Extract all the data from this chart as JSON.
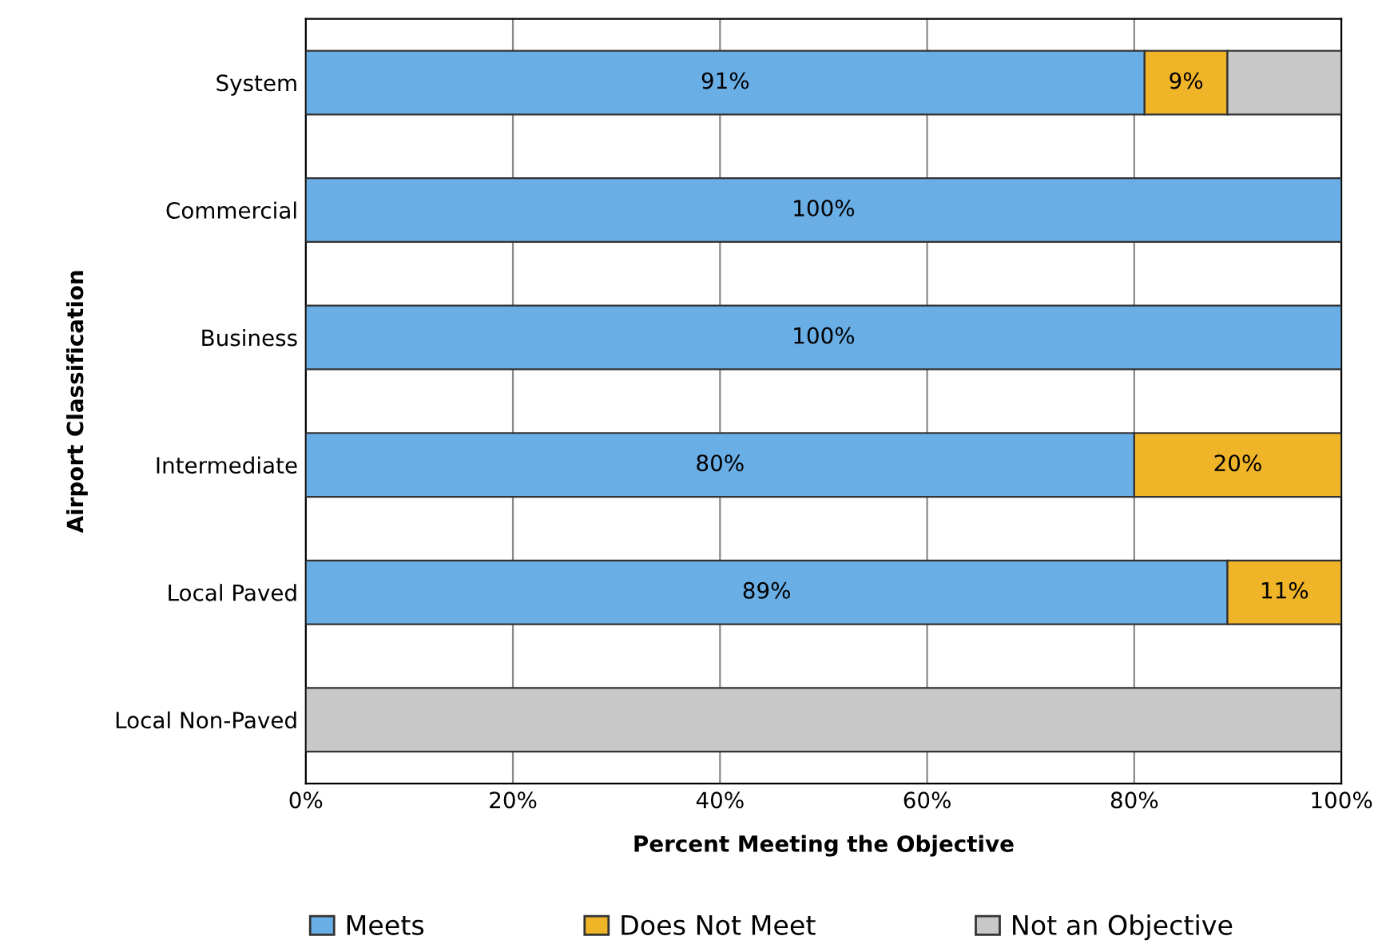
{
  "chart_data": {
    "type": "bar",
    "orientation": "horizontal",
    "stacked": true,
    "categories": [
      "System",
      "Commercial",
      "Business",
      "Intermediate",
      "Local Paved",
      "Local Non-Paved"
    ],
    "series": [
      {
        "name": "Meets",
        "color": "#6aaee6",
        "values": [
          81,
          100,
          100,
          80,
          89,
          null
        ],
        "value_labels": [
          null,
          "100%",
          "100%",
          "80%",
          "89%",
          null
        ]
      },
      {
        "name": "Does Not Meet",
        "color": "#f0b429",
        "values": [
          8,
          null,
          null,
          20,
          11,
          null
        ],
        "value_labels": [
          null,
          null,
          null,
          "20%",
          "11%",
          null
        ]
      },
      {
        "name": "Not an Objective",
        "color": "#c8c8c8",
        "values": [
          11,
          null,
          null,
          null,
          null,
          100
        ],
        "value_labels": [
          null,
          null,
          null,
          null,
          null,
          null
        ]
      }
    ],
    "xlabel": "Percent Meeting the Objective",
    "ylabel": "Airport Classification",
    "xlim": [
      0,
      100
    ],
    "xticks": [
      {
        "value": 0,
        "label": "0%"
      },
      {
        "value": 20,
        "label": "20%"
      },
      {
        "value": 40,
        "label": "40%"
      },
      {
        "value": 60,
        "label": "60%"
      },
      {
        "value": 80,
        "label": "80%"
      },
      {
        "value": 100,
        "label": "100%"
      }
    ],
    "annotations": [
      "91%",
      "9%"
    ],
    "grid": "x",
    "legend": "bottom"
  }
}
